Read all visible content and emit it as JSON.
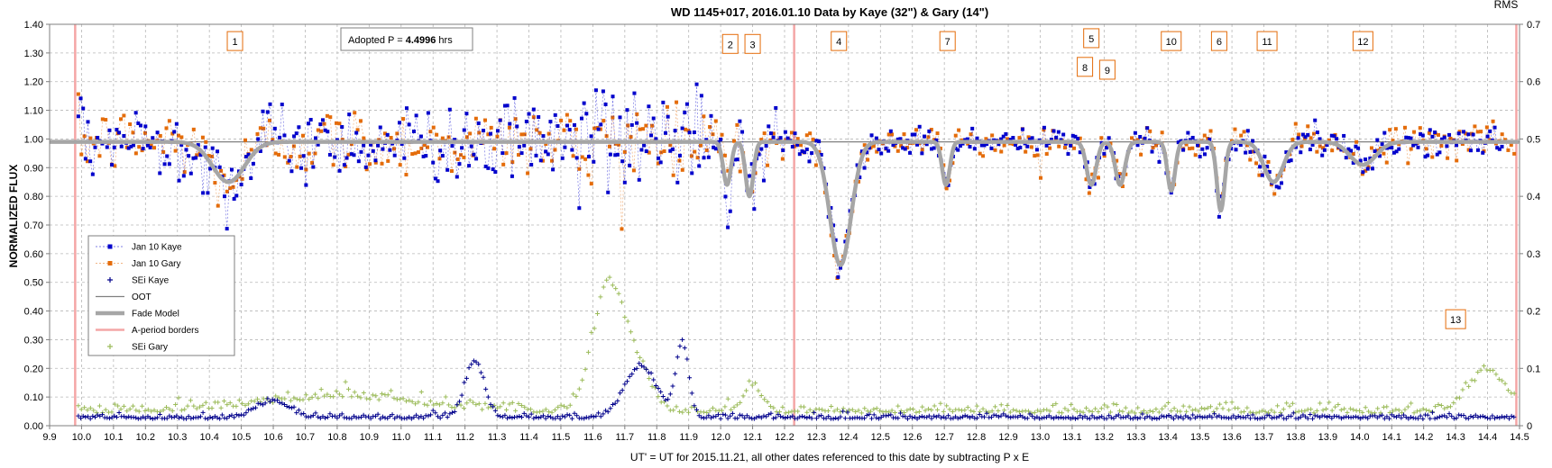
{
  "chart_data": {
    "type": "scatter",
    "title": "WD 1145+017, 2016.01.10 Data by Kaye (32\") & Gary (14\")",
    "xlabel": "UT' = UT for 2015.11.21, all other dates referenced to this date by subtracting P x E",
    "ylabel": "NORMALIZED FLUX",
    "y2label": "RMS",
    "xlim": [
      9.9,
      14.5
    ],
    "ylim": [
      0.0,
      1.4
    ],
    "y2lim": [
      0.0,
      0.7
    ],
    "x_ticks": [
      "9.9",
      "10.0",
      "10.1",
      "10.2",
      "10.3",
      "10.4",
      "10.5",
      "10.6",
      "10.7",
      "10.8",
      "10.9",
      "11.0",
      "11.1",
      "11.2",
      "11.3",
      "11.4",
      "11.5",
      "11.6",
      "11.7",
      "11.8",
      "11.9",
      "12.0",
      "12.1",
      "12.2",
      "12.3",
      "12.4",
      "12.5",
      "12.6",
      "12.7",
      "12.8",
      "12.9",
      "13.0",
      "13.1",
      "13.2",
      "13.3",
      "13.4",
      "13.5",
      "13.6",
      "13.7",
      "13.8",
      "13.9",
      "14.0",
      "14.1",
      "14.2",
      "14.3",
      "14.4",
      "14.5"
    ],
    "y_ticks": [
      "0.00",
      "0.10",
      "0.20",
      "0.30",
      "0.40",
      "0.50",
      "0.60",
      "0.70",
      "0.80",
      "0.90",
      "1.00",
      "1.10",
      "1.20",
      "1.30",
      "1.40"
    ],
    "y2_ticks": [
      "0",
      "0.1",
      "0.2",
      "0.3",
      "0.4",
      "0.5",
      "0.6",
      "0.7"
    ],
    "grid": true,
    "legend_position": "left",
    "oot_level": 0.99,
    "border_lines_x": [
      9.98,
      12.23,
      14.49
    ],
    "period_box": {
      "prefix": "Adopted P = ",
      "value": "4.4996",
      "unit": " hrs"
    },
    "annotations": [
      {
        "label": "1",
        "x": 10.48,
        "y": 1.34
      },
      {
        "label": "2",
        "x": 12.03,
        "y": 1.33
      },
      {
        "label": "3",
        "x": 12.1,
        "y": 1.33
      },
      {
        "label": "4",
        "x": 12.37,
        "y": 1.34
      },
      {
        "label": "7",
        "x": 12.71,
        "y": 1.34
      },
      {
        "label": "5",
        "x": 13.16,
        "y": 1.35
      },
      {
        "label": "8",
        "x": 13.14,
        "y": 1.25
      },
      {
        "label": "9",
        "x": 13.21,
        "y": 1.24
      },
      {
        "label": "10",
        "x": 13.41,
        "y": 1.34
      },
      {
        "label": "6",
        "x": 13.56,
        "y": 1.34
      },
      {
        "label": "11",
        "x": 13.71,
        "y": 1.34
      },
      {
        "label": "12",
        "x": 14.01,
        "y": 1.34
      },
      {
        "label": "13",
        "x": 14.3,
        "y": 0.37
      }
    ],
    "fade_model": {
      "baseline": 0.99,
      "dips": [
        {
          "center": 10.46,
          "depth": 0.14,
          "width": 0.05
        },
        {
          "center": 12.02,
          "depth": 0.15,
          "width": 0.012
        },
        {
          "center": 12.09,
          "depth": 0.19,
          "width": 0.012
        },
        {
          "center": 12.375,
          "depth": 0.43,
          "width": 0.033
        },
        {
          "center": 12.705,
          "depth": 0.15,
          "width": 0.012
        },
        {
          "center": 13.16,
          "depth": 0.15,
          "width": 0.015
        },
        {
          "center": 13.25,
          "depth": 0.15,
          "width": 0.015
        },
        {
          "center": 13.41,
          "depth": 0.17,
          "width": 0.012
        },
        {
          "center": 13.565,
          "depth": 0.24,
          "width": 0.012
        },
        {
          "center": 13.73,
          "depth": 0.14,
          "width": 0.03
        },
        {
          "center": 14.01,
          "depth": 0.08,
          "width": 0.04
        }
      ]
    },
    "series": [
      {
        "name": "Jan 10 Kaye",
        "marker": "square",
        "color": "#0000cc"
      },
      {
        "name": "Jan 10 Gary",
        "marker": "square",
        "color": "#e46c0a"
      },
      {
        "name": "SEi Kaye",
        "marker": "plus",
        "color": "#00008b"
      },
      {
        "name": "OOT",
        "marker": "line",
        "color": "#808080"
      },
      {
        "name": "Fade Model",
        "marker": "thickline",
        "color": "#a6a6a6"
      },
      {
        "name": "A-period borders",
        "marker": "line",
        "color": "#f4a6a6"
      },
      {
        "name": "SEi Gary",
        "marker": "plus",
        "color": "#9bbb59"
      }
    ],
    "noise_features": {
      "kaye_scatter_sd_early": 0.06,
      "kaye_scatter_sd_late": 0.025,
      "gary_scatter_sd_early": 0.06,
      "gary_scatter_sd_late": 0.03,
      "sei_kaye_baseline_rms": 0.012,
      "sei_gary_baseline_rms": 0.022,
      "sei_kaye_bumps": [
        {
          "center": 11.23,
          "height": 0.1,
          "width": 0.03
        },
        {
          "center": 11.75,
          "height": 0.09,
          "width": 0.05
        },
        {
          "center": 11.88,
          "height": 0.13,
          "width": 0.02
        },
        {
          "center": 10.6,
          "height": 0.03,
          "width": 0.05
        }
      ],
      "sei_gary_bumps": [
        {
          "center": 11.65,
          "height": 0.22,
          "width": 0.05
        },
        {
          "center": 11.75,
          "height": 0.06,
          "width": 0.04
        },
        {
          "center": 12.1,
          "height": 0.04,
          "width": 0.03
        },
        {
          "center": 14.4,
          "height": 0.07,
          "width": 0.06
        },
        {
          "center": 10.8,
          "height": 0.025,
          "width": 0.25
        }
      ]
    }
  }
}
